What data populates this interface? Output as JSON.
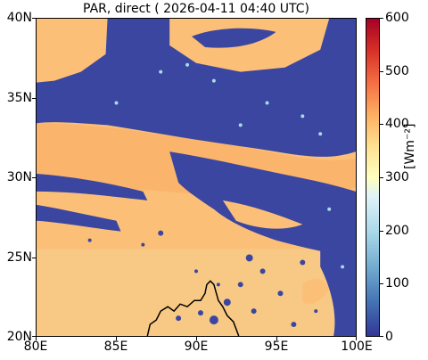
{
  "title": "PAR, direct ( 2026-04-11 04:40 UTC)",
  "map": {
    "x_ticks": [
      "80E",
      "85E",
      "90E",
      "95E",
      "100E"
    ],
    "y_ticks": [
      "40N",
      "35N",
      "30N",
      "25N",
      "20N"
    ],
    "lon_range": [
      80,
      100
    ],
    "lat_range": [
      20,
      40
    ],
    "colors": {
      "low_value": "#3a46a0",
      "high_value": "#fcb46c",
      "land_far_south": "#f8c985",
      "coastline": "#000000"
    }
  },
  "colorbar": {
    "label": "[Wm⁻²]",
    "ticks": [
      "600",
      "500",
      "400",
      "300",
      "200",
      "100",
      "0"
    ],
    "range": [
      0,
      600
    ],
    "colormap": "RdYlBu_r"
  }
}
